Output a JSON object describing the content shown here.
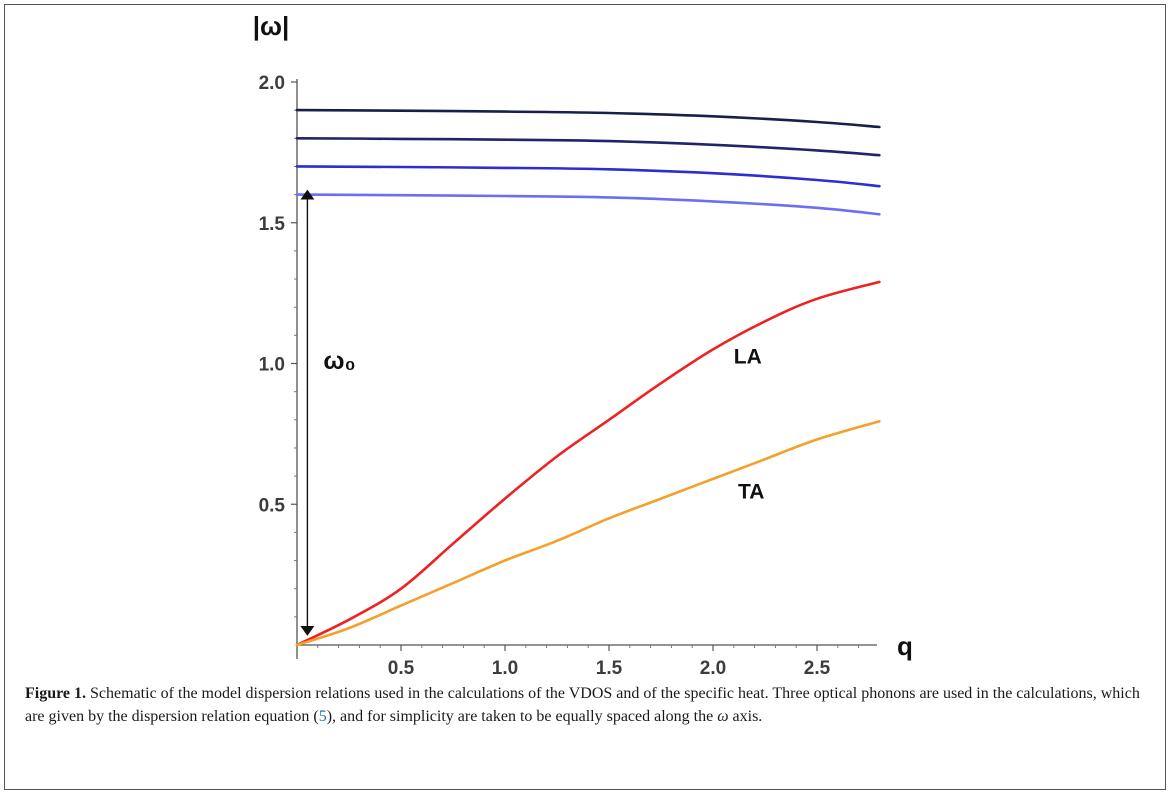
{
  "chart_data": {
    "type": "line",
    "xlabel": "q",
    "ylabel": "|ω|",
    "xlim": [
      0,
      2.8
    ],
    "ylim": [
      0,
      2.0
    ],
    "x_ticks": [
      0.5,
      1.0,
      1.5,
      2.0,
      2.5
    ],
    "x_tick_labels": [
      "0.5",
      "1.0",
      "1.5",
      "2.0",
      "2.5"
    ],
    "y_ticks": [
      0.5,
      1.0,
      1.5,
      2.0
    ],
    "y_tick_labels": [
      "0.5",
      "1.0",
      "1.5",
      "2.0"
    ],
    "grid": false,
    "series": [
      {
        "color": "#1a1f4a",
        "x": [
          0,
          0.5,
          1.0,
          1.5,
          2.0,
          2.5,
          2.8
        ],
        "y": [
          1.9,
          1.898,
          1.895,
          1.89,
          1.878,
          1.858,
          1.84
        ]
      },
      {
        "color": "#22236b",
        "x": [
          0,
          0.5,
          1.0,
          1.5,
          2.0,
          2.5,
          2.8
        ],
        "y": [
          1.8,
          1.798,
          1.795,
          1.79,
          1.777,
          1.757,
          1.74
        ]
      },
      {
        "color": "#2c2ed0",
        "x": [
          0,
          0.5,
          1.0,
          1.5,
          2.0,
          2.5,
          2.8
        ],
        "y": [
          1.7,
          1.698,
          1.695,
          1.69,
          1.676,
          1.652,
          1.63
        ]
      },
      {
        "color": "#6d6ef0",
        "x": [
          0,
          0.5,
          1.0,
          1.5,
          2.0,
          2.5,
          2.8
        ],
        "y": [
          1.6,
          1.598,
          1.595,
          1.59,
          1.576,
          1.553,
          1.53
        ]
      },
      {
        "name": "LA",
        "color": "#ee2222",
        "x": [
          0,
          0.25,
          0.5,
          0.75,
          1.0,
          1.25,
          1.5,
          1.75,
          2.0,
          2.25,
          2.5,
          2.8
        ],
        "y": [
          0,
          0.09,
          0.2,
          0.36,
          0.52,
          0.67,
          0.8,
          0.93,
          1.05,
          1.15,
          1.23,
          1.29
        ]
      },
      {
        "name": "TA",
        "color": "#f5a02a",
        "x": [
          0,
          0.25,
          0.5,
          0.75,
          1.0,
          1.25,
          1.5,
          1.75,
          2.0,
          2.25,
          2.5,
          2.8
        ],
        "y": [
          0,
          0.06,
          0.14,
          0.22,
          0.3,
          0.37,
          0.45,
          0.52,
          0.59,
          0.66,
          0.73,
          0.795
        ]
      }
    ],
    "annotations": {
      "omega0_label": "ω₀",
      "omega0_arrow": {
        "x": 0.05,
        "y_from": 0.05,
        "y_to": 1.6
      }
    }
  },
  "caption": {
    "label": "Figure 1.",
    "text_before_ref": " Schematic of the model dispersion relations used in the calculations of the VDOS and of the specific heat. Three optical phonons are used in the calculations, which are given by the dispersion relation equation (",
    "ref": "5",
    "text_after_ref": "), and for simplicity are taken to be equally spaced along the ",
    "omega": "ω",
    "text_end": " axis."
  }
}
